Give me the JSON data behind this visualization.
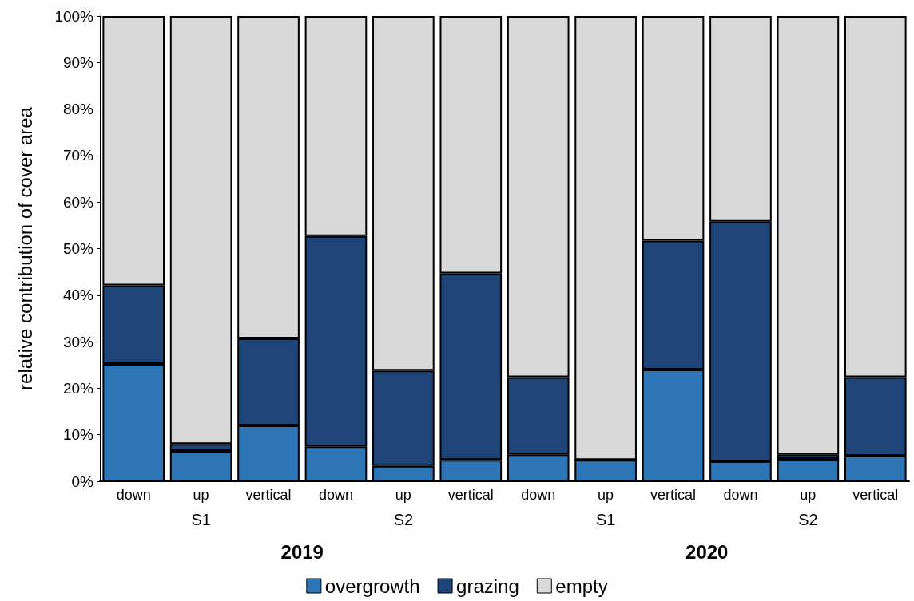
{
  "chart_data": {
    "type": "bar",
    "stacked": true,
    "ylabel": "relative contribution of cover area",
    "categories": [
      "down",
      "up",
      "vertical",
      "down",
      "up",
      "vertical",
      "down",
      "up",
      "vertical",
      "down",
      "up",
      "vertical"
    ],
    "series": [
      {
        "name": "overgrowth",
        "color": "#2e75b6",
        "values": [
          25.2,
          6.5,
          12,
          7.5,
          3.3,
          4.6,
          5.8,
          4.6,
          24,
          4.3,
          4.8,
          5.5
        ]
      },
      {
        "name": "grazing",
        "color": "#1f4477",
        "values": [
          16.9,
          1.5,
          18.7,
          45.2,
          20.5,
          40.1,
          16.6,
          0,
          27.7,
          51.5,
          1,
          16.9
        ]
      },
      {
        "name": "empty",
        "color": "#d9d9d9",
        "values": [
          57.9,
          92,
          69.3,
          47.3,
          76.2,
          55.3,
          77.6,
          95.4,
          48.3,
          44.2,
          94.2,
          77.6
        ]
      }
    ],
    "ylim": [
      0,
      100
    ],
    "yticks": [
      {
        "value": 0,
        "label": "0%"
      },
      {
        "value": 10,
        "label": "10%"
      },
      {
        "value": 20,
        "label": "20%"
      },
      {
        "value": 30,
        "label": "30%"
      },
      {
        "value": 40,
        "label": "40%"
      },
      {
        "value": 50,
        "label": "50%"
      },
      {
        "value": 60,
        "label": "60%"
      },
      {
        "value": 70,
        "label": "70%"
      },
      {
        "value": 80,
        "label": "80%"
      },
      {
        "value": 90,
        "label": "90%"
      },
      {
        "value": 100,
        "label": "100%"
      }
    ],
    "annotations": [
      "S1",
      "S2",
      "S1",
      "S2",
      "2019",
      "2020"
    ],
    "grid": false,
    "legend": "bottom"
  }
}
